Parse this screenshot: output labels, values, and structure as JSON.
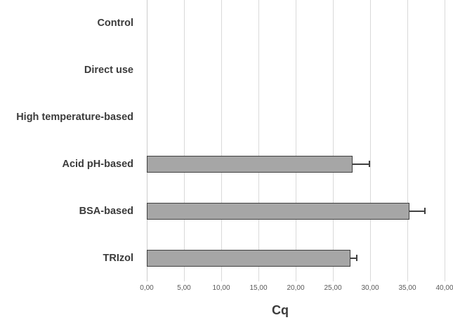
{
  "chart_data": {
    "type": "bar",
    "orientation": "horizontal",
    "title": "",
    "xlabel": "Cq",
    "ylabel": "",
    "xlim": [
      0,
      40
    ],
    "grid": "vertical",
    "legend": "none",
    "categories": [
      "Control",
      "Direct use",
      "High temperature-based",
      "Acid pH-based",
      "BSA-based",
      "TRIzol"
    ],
    "values": [
      0,
      0,
      0,
      27.6,
      35.3,
      27.4
    ],
    "errors_plus": [
      0,
      0,
      0,
      2.3,
      2.1,
      0.8
    ],
    "x_ticks": [
      "0,00",
      "5,00",
      "10,00",
      "15,00",
      "20,00",
      "25,00",
      "30,00",
      "35,00",
      "40,00"
    ],
    "x_tick_values": [
      0,
      5,
      10,
      15,
      20,
      25,
      30,
      35,
      40
    ],
    "colors": {
      "background": "#ffffff",
      "bar_fill": "#a6a6a6",
      "bar_border": "#404040",
      "error_bar": "#404040",
      "gridline": "#d9d9d9",
      "axis_line": "#cccccc",
      "tick_label": "#595959",
      "category_label": "#3b3b3b",
      "axis_title": "#3b3b3b"
    }
  }
}
